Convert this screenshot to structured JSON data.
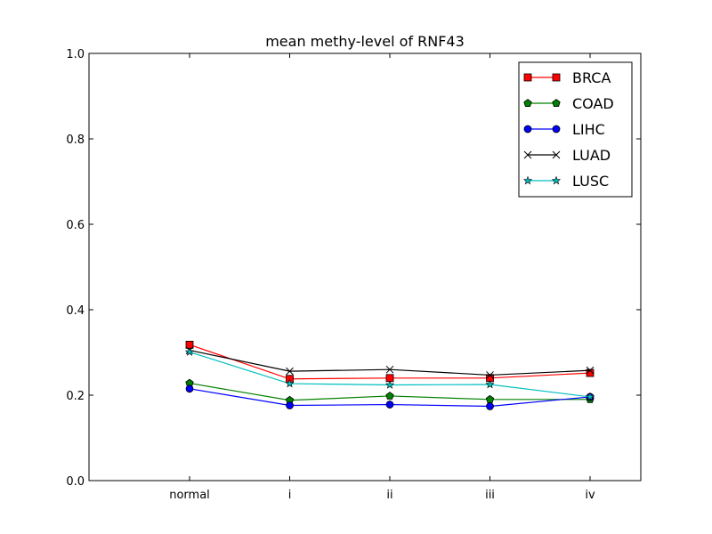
{
  "chart_data": {
    "type": "line",
    "title": "mean methy-level of RNF43",
    "xlabel": "",
    "ylabel": "",
    "categories": [
      "normal",
      "i",
      "ii",
      "iii",
      "iv"
    ],
    "ylim": [
      0.0,
      1.0
    ],
    "yticks": [
      "0.0",
      "0.2",
      "0.4",
      "0.6",
      "0.8",
      "1.0"
    ],
    "grid": false,
    "legend_position": "top-right",
    "series": [
      {
        "name": "BRCA",
        "color": "#ff0000",
        "marker": "square",
        "values": [
          0.318,
          0.238,
          0.24,
          0.24,
          0.252
        ]
      },
      {
        "name": "COAD",
        "color": "#008000",
        "marker": "pentagon",
        "values": [
          0.228,
          0.188,
          0.198,
          0.19,
          0.19
        ]
      },
      {
        "name": "LIHC",
        "color": "#0000ff",
        "marker": "circle",
        "values": [
          0.215,
          0.176,
          0.178,
          0.174,
          0.196
        ]
      },
      {
        "name": "LUAD",
        "color": "#000000",
        "marker": "x",
        "values": [
          0.305,
          0.256,
          0.26,
          0.247,
          0.258
        ]
      },
      {
        "name": "LUSC",
        "color": "#00bfbf",
        "marker": "star",
        "values": [
          0.301,
          0.227,
          0.224,
          0.225,
          0.196
        ]
      }
    ]
  }
}
